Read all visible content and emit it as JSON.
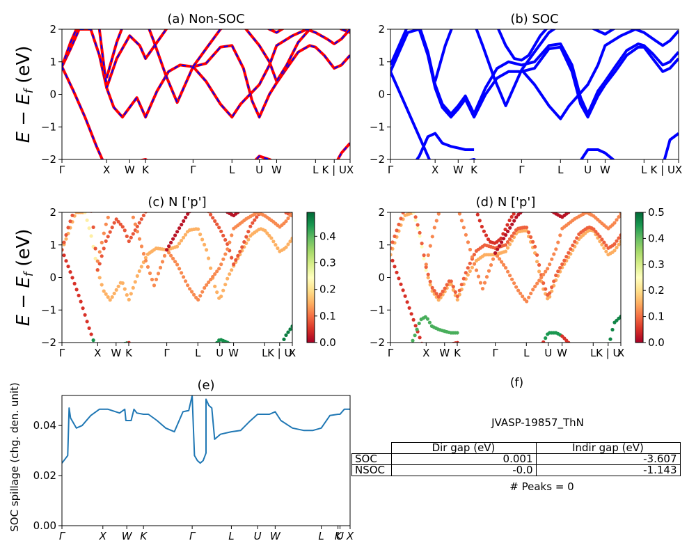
{
  "colors": {
    "nonsoc_band": "#ff0000",
    "nonsoc_dash": "#0000ff",
    "soc_band": "#0000ff",
    "spillage_line": "#1f77b4",
    "colormap": [
      "#a50026",
      "#d73027",
      "#f46d43",
      "#fdae61",
      "#fee08b",
      "#ffffbf",
      "#d9ef8b",
      "#a6d96a",
      "#66bd63",
      "#1a9850",
      "#006837"
    ]
  },
  "chart_data": [
    {
      "id": "a",
      "type": "line",
      "title": "(a) Non-SOC",
      "ylabel": "E − E_f (eV)",
      "ylim": [
        -2,
        2
      ],
      "yticks": [
        "−2",
        "−1",
        "0",
        "1",
        "2"
      ],
      "kpath_labels": [
        "Γ",
        "X",
        "W",
        "K",
        "Γ",
        "L",
        "U",
        "W",
        "L",
        "K | U",
        "X"
      ],
      "kpath_positions": [
        0,
        0.155,
        0.235,
        0.29,
        0.455,
        0.59,
        0.685,
        0.745,
        0.88,
        0.945,
        1.0
      ],
      "series": [
        {
          "x": [
            0,
            0.04,
            0.08,
            0.12,
            0.155,
            0.2,
            0.235,
            0.29,
            0.33,
            0.38,
            0.42,
            0.455,
            0.5,
            0.55,
            0.59,
            0.64,
            0.685,
            0.72,
            0.745,
            0.8,
            0.84,
            0.88,
            0.92,
            0.945,
            0.97,
            1.0
          ],
          "y": [
            0.85,
            0.1,
            -0.7,
            -1.6,
            -2.3,
            -2.3,
            -2.1,
            -2.0,
            -2.2,
            -2.4,
            -2.3,
            -2.4,
            -2.3,
            -2.2,
            -2.4,
            -2.3,
            -1.9,
            -2.0,
            -2.1,
            -2.2,
            -2.3,
            -2.4,
            -2.3,
            -2.2,
            -1.8,
            -1.5
          ]
        },
        {
          "x": [
            0,
            0.03,
            0.06,
            0.1,
            0.13,
            0.155,
            0.18,
            0.21,
            0.235,
            0.26,
            0.29,
            0.33,
            0.37,
            0.41,
            0.455,
            0.5,
            0.55,
            0.59,
            0.63,
            0.66,
            0.685,
            0.72,
            0.745,
            0.78,
            0.82,
            0.86,
            0.88,
            0.91,
            0.945,
            0.97,
            1.0
          ],
          "y": [
            0.85,
            1.4,
            2.0,
            2.0,
            1.2,
            0.2,
            -0.4,
            -0.7,
            -0.4,
            -0.1,
            -0.7,
            0.1,
            0.7,
            0.9,
            0.85,
            0.95,
            1.45,
            1.5,
            0.8,
            -0.2,
            -0.7,
            0.0,
            0.35,
            0.8,
            1.3,
            1.5,
            1.45,
            1.2,
            0.8,
            0.9,
            1.2
          ]
        },
        {
          "x": [
            0,
            0.03,
            0.06,
            0.1,
            0.13,
            0.155,
            0.19,
            0.235,
            0.27,
            0.29,
            0.33,
            0.37,
            0.41,
            0.455,
            0.5,
            0.55,
            0.59,
            0.63,
            0.685,
            0.72,
            0.745,
            0.78,
            0.82,
            0.86,
            0.88,
            0.91,
            0.945,
            0.97,
            1.0
          ],
          "y": [
            0.85,
            1.6,
            2.2,
            2.4,
            2.0,
            0.2,
            1.1,
            1.8,
            1.5,
            1.1,
            1.6,
            2.1,
            2.2,
            2.1,
            2.3,
            2.2,
            2.4,
            2.1,
            1.5,
            1.0,
            0.4,
            0.9,
            1.6,
            2.0,
            2.2,
            2.3,
            2.2,
            2.0,
            1.9
          ]
        },
        {
          "x": [
            0.155,
            0.19,
            0.22,
            0.25,
            0.29,
            0.32,
            0.36,
            0.4,
            0.455,
            0.5,
            0.55,
            0.59,
            0.62,
            0.685,
            0.72,
            0.745,
            0.8,
            0.85,
            0.88,
            0.92,
            0.945,
            0.97,
            1.0
          ],
          "y": [
            0.5,
            1.6,
            2.3,
            2.4,
            2.3,
            1.6,
            0.6,
            -0.25,
            0.85,
            0.4,
            -0.3,
            -0.7,
            -0.3,
            0.3,
            0.9,
            1.5,
            1.8,
            2.0,
            1.9,
            1.7,
            1.55,
            1.7,
            2.0
          ]
        },
        {
          "x": [
            0.455,
            0.5,
            0.55,
            0.6,
            0.64,
            0.685,
            0.72,
            0.745,
            0.8,
            0.85,
            0.9,
            0.945,
            1.0
          ],
          "y": [
            0.85,
            1.4,
            2.0,
            2.3,
            2.4,
            2.2,
            2.0,
            1.9,
            2.2,
            2.4,
            2.3,
            2.1,
            2.2
          ]
        }
      ]
    },
    {
      "id": "b",
      "type": "line",
      "title": "(b) SOC",
      "ylim": [
        -2,
        2
      ],
      "yticks": [
        "−2",
        "−1",
        "0",
        "1",
        "2"
      ],
      "kpath_labels": [
        "Γ",
        "X",
        "W",
        "K",
        "Γ",
        "L",
        "U",
        "W",
        "L",
        "K | U",
        "X"
      ],
      "kpath_positions": [
        0,
        0.155,
        0.235,
        0.29,
        0.455,
        0.59,
        0.685,
        0.745,
        0.88,
        0.945,
        1.0
      ],
      "series": [
        {
          "x": [
            0,
            0.04,
            0.08,
            0.12,
            0.155,
            0.2,
            0.235,
            0.29,
            0.33,
            0.38,
            0.42,
            0.455,
            0.5,
            0.55,
            0.59,
            0.64,
            0.685,
            0.72,
            0.745,
            0.8,
            0.84,
            0.88,
            0.92,
            0.945,
            0.97,
            1.0
          ],
          "y": [
            0.7,
            -0.1,
            -0.9,
            -1.7,
            -2.4,
            -2.3,
            -2.1,
            -2.0,
            -2.2,
            -2.4,
            -2.3,
            -2.4,
            -2.3,
            -2.2,
            -2.4,
            -2.3,
            -1.7,
            -1.7,
            -1.8,
            -2.2,
            -2.3,
            -2.4,
            -2.3,
            -2.2,
            -1.4,
            -1.2
          ]
        },
        {
          "x": [
            0.06,
            0.1,
            0.13,
            0.155,
            0.18,
            0.21,
            0.235,
            0.26,
            0.29
          ],
          "y": [
            -2.4,
            -1.9,
            -1.3,
            -1.2,
            -1.5,
            -1.6,
            -1.65,
            -1.7,
            -1.7
          ]
        },
        {
          "x": [
            0,
            0.03,
            0.06,
            0.1,
            0.13,
            0.155,
            0.18,
            0.21,
            0.235,
            0.26,
            0.29,
            0.33,
            0.37,
            0.41,
            0.455,
            0.5,
            0.55,
            0.59,
            0.63,
            0.66,
            0.685,
            0.72,
            0.745,
            0.78,
            0.82,
            0.86,
            0.88,
            0.91,
            0.945,
            0.97,
            1.0
          ],
          "y": [
            0.7,
            1.3,
            1.9,
            2.0,
            1.2,
            0.2,
            -0.4,
            -0.7,
            -0.45,
            -0.15,
            -0.7,
            0.0,
            0.5,
            0.7,
            0.7,
            0.8,
            1.4,
            1.45,
            0.7,
            -0.3,
            -0.7,
            -0.05,
            0.3,
            0.7,
            1.2,
            1.45,
            1.45,
            1.1,
            0.7,
            0.8,
            1.1
          ]
        },
        {
          "x": [
            0,
            0.03,
            0.06,
            0.1,
            0.13,
            0.155,
            0.18,
            0.21,
            0.235,
            0.26,
            0.29,
            0.33,
            0.37,
            0.41,
            0.455,
            0.5,
            0.55,
            0.59,
            0.63,
            0.66,
            0.685,
            0.72,
            0.745,
            0.78,
            0.82,
            0.86,
            0.88,
            0.91,
            0.945,
            0.97,
            1.0
          ],
          "y": [
            0.9,
            1.5,
            2.1,
            2.1,
            1.3,
            0.3,
            -0.3,
            -0.6,
            -0.35,
            -0.05,
            -0.6,
            0.2,
            0.8,
            1.0,
            0.9,
            1.0,
            1.5,
            1.55,
            0.9,
            -0.1,
            -0.6,
            0.1,
            0.4,
            0.85,
            1.35,
            1.55,
            1.5,
            1.25,
            0.9,
            1.0,
            1.3
          ]
        },
        {
          "x": [
            0.155,
            0.19,
            0.22,
            0.25,
            0.29,
            0.32,
            0.36,
            0.4,
            0.455,
            0.5,
            0.55,
            0.59,
            0.62,
            0.685,
            0.72,
            0.745,
            0.8,
            0.85,
            0.88,
            0.92,
            0.945,
            0.97,
            1.0
          ],
          "y": [
            0.4,
            1.5,
            2.2,
            2.3,
            2.2,
            1.5,
            0.5,
            -0.35,
            0.75,
            0.3,
            -0.35,
            -0.75,
            -0.35,
            0.3,
            0.9,
            1.5,
            1.8,
            2.0,
            1.9,
            1.65,
            1.5,
            1.65,
            1.95
          ]
        },
        {
          "x": [
            0.36,
            0.4,
            0.43,
            0.455,
            0.48,
            0.52,
            0.56,
            0.6
          ],
          "y": [
            2.3,
            1.5,
            1.1,
            1.05,
            1.2,
            1.8,
            2.2,
            2.4
          ]
        },
        {
          "x": [
            0.455,
            0.5,
            0.55,
            0.6,
            0.64,
            0.685,
            0.72,
            0.745,
            0.8,
            0.85,
            0.9,
            0.945,
            1.0
          ],
          "y": [
            0.75,
            1.3,
            1.9,
            2.2,
            2.35,
            2.1,
            1.95,
            1.85,
            2.15,
            2.35,
            2.25,
            2.05,
            2.15
          ]
        }
      ]
    },
    {
      "id": "c",
      "type": "scatter",
      "title": "(c)  N ['p']",
      "ylabel": "E − E_f (eV)",
      "ylim": [
        -2,
        2
      ],
      "yticks": [
        "−2",
        "−1",
        "0",
        "1",
        "2"
      ],
      "kpath_labels": [
        "Γ",
        "X",
        "W",
        "K",
        "Γ",
        "L",
        "U",
        "W",
        "L",
        "K | U",
        "X"
      ],
      "kpath_positions": [
        0,
        0.155,
        0.235,
        0.29,
        0.455,
        0.59,
        0.685,
        0.745,
        0.88,
        0.945,
        1.0
      ],
      "colorbar": {
        "min": 0.0,
        "max": 0.49,
        "ticks": [
          "0.0",
          "0.1",
          "0.2",
          "0.3",
          "0.4"
        ],
        "tick_values": [
          0,
          0.1,
          0.2,
          0.3,
          0.4
        ]
      },
      "band_weights": [
        0.05,
        0.15,
        0.08,
        0.12,
        0.02
      ],
      "weight_overrides": [
        {
          "band": 0,
          "x": [
            0.13,
            0.29
          ],
          "weight": 0.45
        },
        {
          "band": 0,
          "x": [
            0.67,
            0.74
          ],
          "weight": 0.45
        },
        {
          "band": 0,
          "x": [
            0.93,
            1.0
          ],
          "weight": 0.47
        },
        {
          "band": 1,
          "x": [
            0.1,
            0.16
          ],
          "weight": 0.22
        }
      ]
    },
    {
      "id": "d",
      "type": "scatter",
      "title": "(d) N ['p']",
      "ylim": [
        -2,
        2
      ],
      "yticks": [
        "−2",
        "−1",
        "0",
        "1",
        "2"
      ],
      "kpath_labels": [
        "Γ",
        "X",
        "W",
        "K",
        "Γ",
        "L",
        "U",
        "W",
        "L",
        "K | U",
        "X"
      ],
      "kpath_positions": [
        0,
        0.155,
        0.235,
        0.29,
        0.455,
        0.59,
        0.685,
        0.745,
        0.88,
        0.945,
        1.0
      ],
      "colorbar": {
        "min": 0.0,
        "max": 0.5,
        "ticks": [
          "0.0",
          "0.1",
          "0.2",
          "0.3",
          "0.4",
          "0.5"
        ],
        "tick_values": [
          0,
          0.1,
          0.2,
          0.3,
          0.4,
          0.5
        ]
      },
      "band_weights": [
        0.05,
        0.42,
        0.15,
        0.09,
        0.12,
        0.05,
        0.02
      ],
      "weight_overrides": [
        {
          "band": 0,
          "x": [
            0.67,
            0.74
          ],
          "weight": 0.45
        },
        {
          "band": 0,
          "x": [
            0.93,
            1.0
          ],
          "weight": 0.47
        },
        {
          "band": 2,
          "x": [
            0.1,
            0.16
          ],
          "weight": 0.25
        }
      ]
    },
    {
      "id": "e",
      "type": "line",
      "title": "(e)",
      "ylabel": "SOC spillage (chg. den. unit)",
      "ylim": [
        0,
        0.052
      ],
      "yticks": [
        "0.00",
        "0.02",
        "0.04"
      ],
      "ytick_values": [
        0,
        0.02,
        0.04
      ],
      "kpath_labels": [
        "Γ",
        "X",
        "W",
        "K",
        "Γ",
        "L",
        "U",
        "W",
        "L",
        "K",
        "U",
        "X"
      ],
      "kpath_positions": [
        0,
        0.142,
        0.225,
        0.283,
        0.452,
        0.588,
        0.679,
        0.74,
        0.9,
        0.958,
        0.965,
        1.0
      ],
      "series": [
        {
          "name": "",
          "x": [
            0,
            0.02,
            0.025,
            0.03,
            0.05,
            0.07,
            0.1,
            0.13,
            0.142,
            0.16,
            0.2,
            0.218,
            0.222,
            0.225,
            0.24,
            0.25,
            0.26,
            0.283,
            0.3,
            0.33,
            0.36,
            0.39,
            0.42,
            0.44,
            0.452,
            0.46,
            0.47,
            0.48,
            0.49,
            0.5,
            0.5,
            0.51,
            0.52,
            0.53,
            0.55,
            0.588,
            0.62,
            0.65,
            0.679,
            0.7,
            0.72,
            0.74,
            0.76,
            0.8,
            0.84,
            0.87,
            0.9,
            0.93,
            0.958,
            0.965,
            0.98,
            1.0
          ],
          "y": [
            0.025,
            0.028,
            0.047,
            0.043,
            0.039,
            0.04,
            0.044,
            0.0465,
            0.0465,
            0.0465,
            0.045,
            0.0465,
            0.042,
            0.042,
            0.042,
            0.0465,
            0.045,
            0.0445,
            0.0445,
            0.042,
            0.039,
            0.0375,
            0.0455,
            0.046,
            0.052,
            0.028,
            0.026,
            0.025,
            0.026,
            0.029,
            0.0505,
            0.048,
            0.047,
            0.0345,
            0.0365,
            0.0375,
            0.038,
            0.0415,
            0.0445,
            0.0445,
            0.0445,
            0.0455,
            0.042,
            0.039,
            0.038,
            0.038,
            0.039,
            0.044,
            0.0445,
            0.0445,
            0.0465,
            0.0465
          ]
        }
      ]
    }
  ],
  "info_panel": {
    "title": "(f)",
    "material_id": "JVASP-19857_ThN",
    "table": {
      "headers": [
        "Dir gap (eV)",
        "Indir gap (eV)"
      ],
      "rows": [
        {
          "label": "SOC",
          "dir": "0.001",
          "indir": "-3.607"
        },
        {
          "label": "NSOC",
          "dir": "-0.0",
          "indir": "-1.143"
        }
      ]
    },
    "peaks": "# Peaks = 0"
  }
}
